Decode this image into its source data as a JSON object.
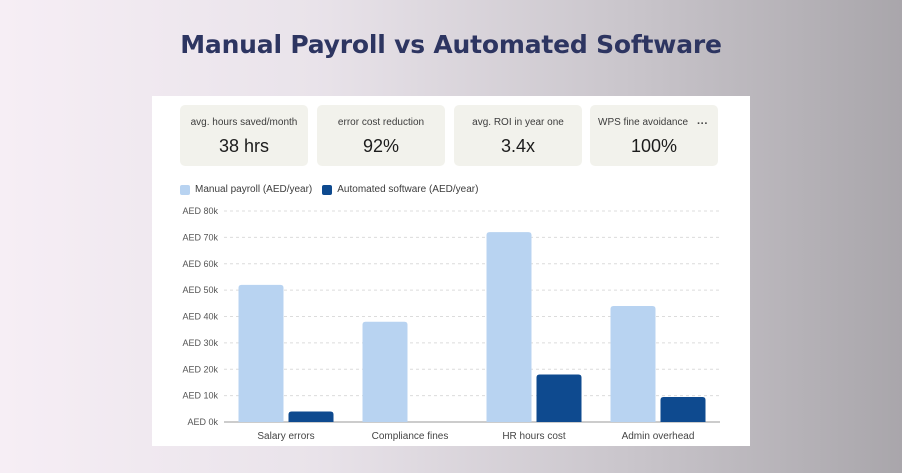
{
  "header": {
    "title": "Manual Payroll vs Automated Software"
  },
  "kpis": [
    {
      "label": "avg. hours saved/month",
      "value": "38 hrs"
    },
    {
      "label": "error cost reduction",
      "value": "92%"
    },
    {
      "label": "avg. ROI in year one",
      "value": "3.4x"
    },
    {
      "label": "WPS fine avoidance",
      "value": "100%"
    }
  ],
  "kpi_more_label": "···",
  "colors": {
    "manual": "#b8d3f1",
    "automated": "#0e4a8f",
    "title": "#2d3561"
  },
  "chart_data": {
    "type": "bar",
    "categories": [
      "Salary errors",
      "Compliance fines",
      "HR hours cost",
      "Admin overhead"
    ],
    "series": [
      {
        "name": "Manual payroll (AED/year)",
        "values": [
          52000,
          38000,
          72000,
          44000
        ]
      },
      {
        "name": "Automated software (AED/year)",
        "values": [
          4000,
          0,
          18000,
          9500
        ]
      }
    ],
    "ylim": [
      0,
      80000
    ],
    "yticks": [
      0,
      10000,
      20000,
      30000,
      40000,
      50000,
      60000,
      70000,
      80000
    ],
    "ytick_labels": [
      "AED 0k",
      "AED 10k",
      "AED 20k",
      "AED 30k",
      "AED 40k",
      "AED 50k",
      "AED 60k",
      "AED 70k",
      "AED 80k"
    ],
    "grid": true,
    "legend": "top-left"
  }
}
